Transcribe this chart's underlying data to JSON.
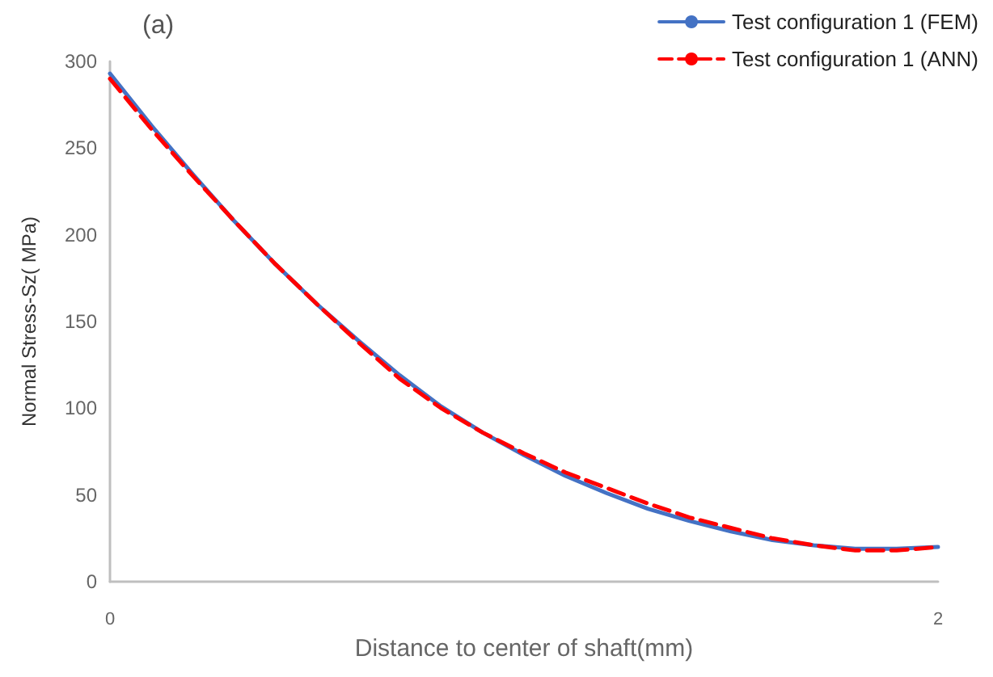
{
  "chart_data": {
    "type": "line",
    "xlabel": "Distance to center of shaft(mm)",
    "ylabel": "Normal Stress-Sz( MPa)",
    "annotations": [
      "(a)"
    ],
    "x": [
      0,
      0.1,
      0.2,
      0.3,
      0.4,
      0.5,
      0.6,
      0.7,
      0.8,
      0.9,
      1.0,
      1.1,
      1.2,
      1.3,
      1.4,
      1.5,
      1.6,
      1.7,
      1.8,
      1.9,
      2.0
    ],
    "series": [
      {
        "name": "Test configuration 1 (FEM)",
        "color": "#4472c4",
        "line_style": "solid",
        "values": [
          293,
          263,
          235,
          208,
          183,
          160,
          139,
          119,
          101,
          86,
          73,
          61,
          51,
          42,
          35,
          29,
          24,
          21,
          19,
          19,
          20
        ]
      },
      {
        "name": "Test configuration 1 (ANN)",
        "color": "#ff0000",
        "line_style": "dashed",
        "values": [
          290,
          261,
          234,
          208,
          183,
          160,
          138,
          117,
          100,
          86,
          74,
          63,
          54,
          45,
          37,
          31,
          25,
          21,
          18,
          18,
          20
        ]
      }
    ],
    "xlim": [
      0,
      2
    ],
    "xticks": [
      0,
      2
    ],
    "ylim": [
      0,
      300
    ],
    "yticks": [
      0,
      50,
      100,
      150,
      200,
      250,
      300
    ],
    "grid": false,
    "legend": "top right",
    "marker": "none"
  }
}
